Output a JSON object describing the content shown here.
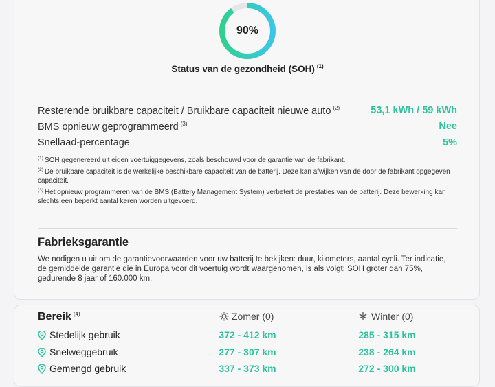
{
  "soh": {
    "value": 90,
    "label": "90%"
  },
  "soh_title": "Status van de gezondheid (SOH)",
  "soh_title_note": "(1)",
  "details": [
    {
      "label": "Resterende bruikbare capaciteit / Bruikbare capaciteit nieuwe auto",
      "note": "(2)",
      "value": "53,1 kWh / 59 kWh"
    },
    {
      "label": "BMS opnieuw geprogrammeerd",
      "note": "(3)",
      "value": "Nee"
    },
    {
      "label": "Snellaad-percentage",
      "value": "5%"
    }
  ],
  "footnotes": [
    {
      "marker": "(1)",
      "text": "SOH gegenereerd uit eigen voertuiggegevens, zoals beschouwd voor de garantie van de fabrikant."
    },
    {
      "marker": "(2)",
      "text": "De bruikbare capaciteit is de werkelijke beschikbare capaciteit van de batterij. Deze kan afwijken van de door de fabrikant opgegeven capaciteit."
    },
    {
      "marker": "(3)",
      "text": "Het opnieuw programmeren van de BMS (Battery Management System) verbetert de prestaties van de batterij. Deze bewerking kan slechts een beperkt aantal keren worden uitgevoerd."
    }
  ],
  "warranty": {
    "title": "Fabrieksgarantie",
    "text": "We nodigen u uit om de garantievoorwaarden voor uw batterij te bekijken: duur, kilometers, aantal cycli. Ter indicatie, de gemiddelde garantie die in Europa voor dit voertuig wordt waargenomen, is als volgt: SOH groter dan 75%, gedurende 8 jaar of 160.000 km."
  },
  "range": {
    "title": "Bereik",
    "note": "(4)",
    "columns": [
      "Zomer (0)",
      "Winter (0)"
    ],
    "rows": [
      {
        "label": "Stedelijk gebruik",
        "summer": "372 - 412 km",
        "winter": "285 - 315 km"
      },
      {
        "label": "Snelweggebruik",
        "summer": "277 - 307 km",
        "winter": "238 - 264 km"
      },
      {
        "label": "Gemengd gebruik",
        "summer": "337 - 373 km",
        "winter": "272 - 300 km"
      }
    ]
  }
}
